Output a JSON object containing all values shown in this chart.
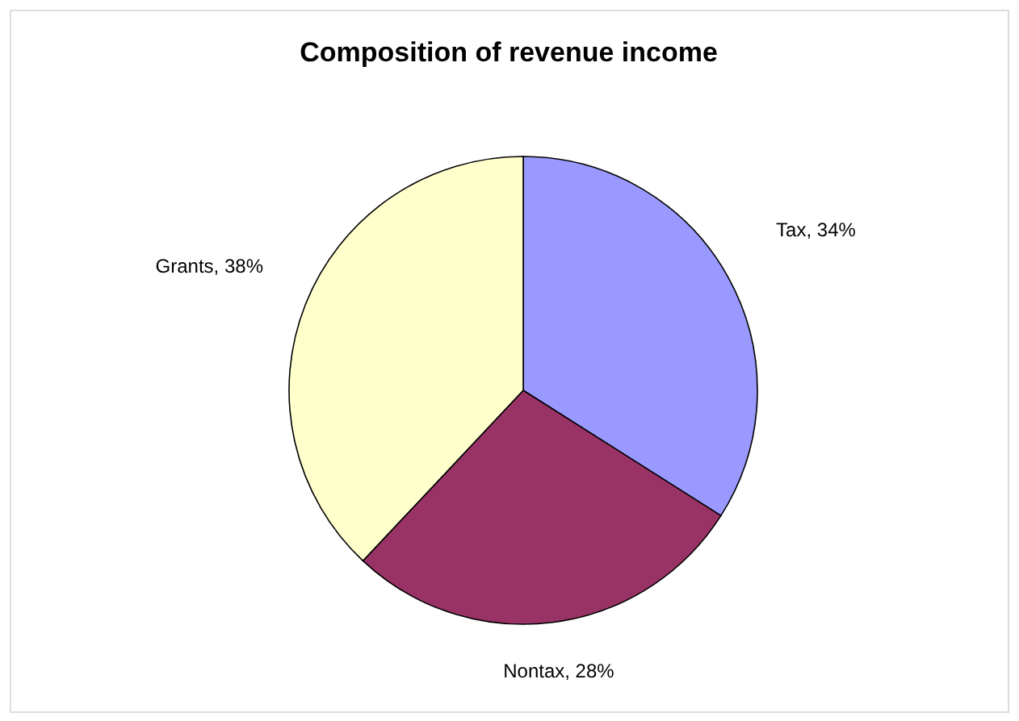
{
  "chart_data": {
    "type": "pie",
    "title": "Composition of revenue income",
    "categories": [
      "Tax",
      "Nontax",
      "Grants"
    ],
    "values": [
      34,
      28,
      38
    ],
    "colors": [
      "#9999ff",
      "#993366",
      "#ffffcc"
    ],
    "value_labels": [
      "34%",
      "28%",
      "38%"
    ],
    "legend": false
  }
}
